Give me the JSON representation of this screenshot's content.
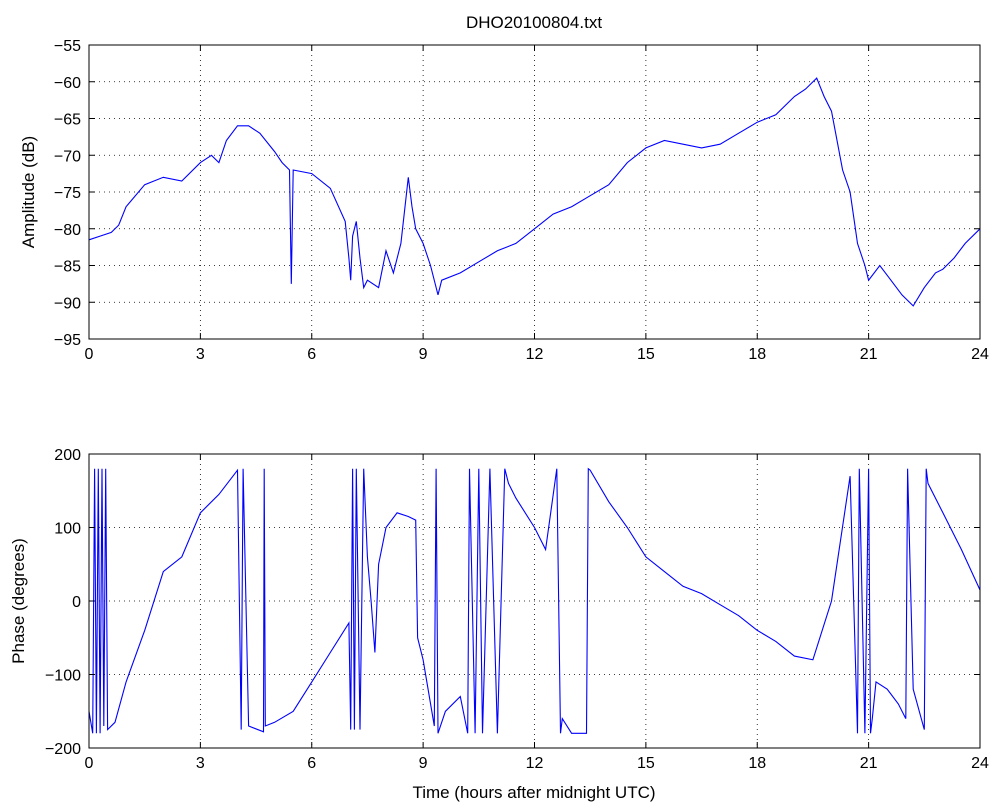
{
  "chart_data": [
    {
      "type": "line",
      "title": "DHO20100804.txt",
      "xlabel": "",
      "ylabel": "Amplitude (dB)",
      "xlim": [
        0,
        24
      ],
      "ylim": [
        -95,
        -55
      ],
      "x_ticks": [
        0,
        3,
        6,
        9,
        12,
        15,
        18,
        21,
        24
      ],
      "y_ticks": [
        -55,
        -60,
        -65,
        -70,
        -75,
        -80,
        -85,
        -90,
        -95
      ],
      "grid": true,
      "line_color": "#0000ff",
      "series": [
        {
          "x": [
            0,
            0.3,
            0.6,
            0.8,
            1.0,
            1.5,
            2.0,
            2.5,
            3.0,
            3.3,
            3.5,
            3.7,
            4.0,
            4.3,
            4.6,
            5.0,
            5.2,
            5.4,
            5.45,
            5.5,
            6.0,
            6.5,
            6.9,
            7.0,
            7.05,
            7.1,
            7.2,
            7.3,
            7.4,
            7.5,
            7.8,
            8.0,
            8.2,
            8.4,
            8.6,
            8.7,
            8.8,
            9.0,
            9.2,
            9.4,
            9.5,
            10.0,
            10.5,
            11.0,
            11.5,
            12.0,
            12.5,
            13.0,
            13.5,
            14.0,
            14.5,
            15.0,
            15.5,
            16.0,
            16.5,
            17.0,
            17.5,
            18.0,
            18.5,
            19.0,
            19.3,
            19.6,
            19.8,
            20.0,
            20.3,
            20.5,
            20.7,
            20.9,
            21.0,
            21.3,
            21.6,
            21.9,
            22.2,
            22.5,
            22.8,
            23.0,
            23.3,
            23.6,
            24.0
          ],
          "values": [
            -81.5,
            -81,
            -80.5,
            -79.5,
            -77,
            -74,
            -73,
            -73.5,
            -71,
            -70,
            -71,
            -68,
            -66,
            -66,
            -67,
            -69.5,
            -71,
            -72,
            -87.5,
            -72,
            -72.5,
            -74.5,
            -79,
            -84,
            -87,
            -81,
            -79,
            -84,
            -88,
            -87,
            -88,
            -83,
            -86,
            -82,
            -73,
            -77,
            -80,
            -82,
            -85,
            -89,
            -87,
            -86,
            -84.5,
            -83,
            -82,
            -80,
            -78,
            -77,
            -75.5,
            -74,
            -71,
            -69,
            -68,
            -68.5,
            -69,
            -68.5,
            -67,
            -65.5,
            -64.5,
            -62,
            -61,
            -59.5,
            -62,
            -64,
            -72,
            -75,
            -82,
            -85,
            -87,
            -85,
            -87,
            -89,
            -90.5,
            -88,
            -86,
            -85.5,
            -84,
            -82,
            -80
          ]
        }
      ]
    },
    {
      "type": "line",
      "title": "",
      "xlabel": "Time (hours after midnight UTC)",
      "ylabel": "Phase (degrees)",
      "xlim": [
        0,
        24
      ],
      "ylim": [
        -200,
        200
      ],
      "x_ticks": [
        0,
        3,
        6,
        9,
        12,
        15,
        18,
        21,
        24
      ],
      "y_ticks": [
        200,
        100,
        0,
        -100,
        -200
      ],
      "grid": true,
      "line_color": "#0000ff",
      "series": [
        {
          "x": [
            0,
            0.1,
            0.15,
            0.2,
            0.25,
            0.3,
            0.35,
            0.4,
            0.45,
            0.5,
            0.7,
            1.0,
            1.5,
            2.0,
            2.5,
            3.0,
            3.5,
            4.0,
            4.1,
            4.15,
            4.3,
            4.7,
            4.72,
            4.75,
            5.0,
            5.5,
            6.0,
            6.5,
            7.0,
            7.05,
            7.1,
            7.15,
            7.2,
            7.3,
            7.4,
            7.5,
            7.6,
            7.7,
            7.8,
            8.0,
            8.3,
            8.6,
            8.8,
            8.85,
            9.0,
            9.3,
            9.35,
            9.4,
            9.6,
            10.0,
            10.2,
            10.25,
            10.4,
            10.5,
            10.6,
            10.8,
            11.0,
            11.2,
            11.3,
            11.5,
            12.0,
            12.3,
            12.6,
            12.7,
            12.75,
            13.0,
            13.4,
            13.45,
            13.5,
            14.0,
            14.5,
            15.0,
            15.5,
            16.0,
            16.5,
            17.0,
            17.5,
            18.0,
            18.5,
            19.0,
            19.5,
            20.0,
            20.5,
            20.7,
            20.75,
            20.9,
            21.0,
            21.05,
            21.1,
            21.2,
            21.5,
            21.8,
            22.0,
            22.05,
            22.2,
            22.5,
            22.55,
            22.6,
            23.0,
            23.5,
            24.0
          ],
          "values": [
            -150,
            -180,
            180,
            -180,
            180,
            -180,
            180,
            -170,
            180,
            -175,
            -165,
            -110,
            -40,
            40,
            60,
            120,
            145,
            178,
            -175,
            180,
            -170,
            -178,
            180,
            -170,
            -165,
            -150,
            -110,
            -70,
            -30,
            -175,
            180,
            -175,
            180,
            -175,
            180,
            60,
            0,
            -70,
            50,
            100,
            120,
            115,
            110,
            -50,
            -80,
            -170,
            180,
            -180,
            -150,
            -130,
            -180,
            180,
            -180,
            180,
            -180,
            180,
            -180,
            180,
            160,
            140,
            100,
            70,
            180,
            -180,
            -160,
            -180,
            -180,
            180,
            178,
            135,
            100,
            60,
            40,
            20,
            10,
            -5,
            -20,
            -40,
            -55,
            -75,
            -80,
            0,
            170,
            -180,
            180,
            -180,
            180,
            -180,
            -160,
            -110,
            -120,
            -140,
            -160,
            180,
            -120,
            -175,
            180,
            160,
            120,
            70,
            15
          ]
        }
      ]
    }
  ]
}
